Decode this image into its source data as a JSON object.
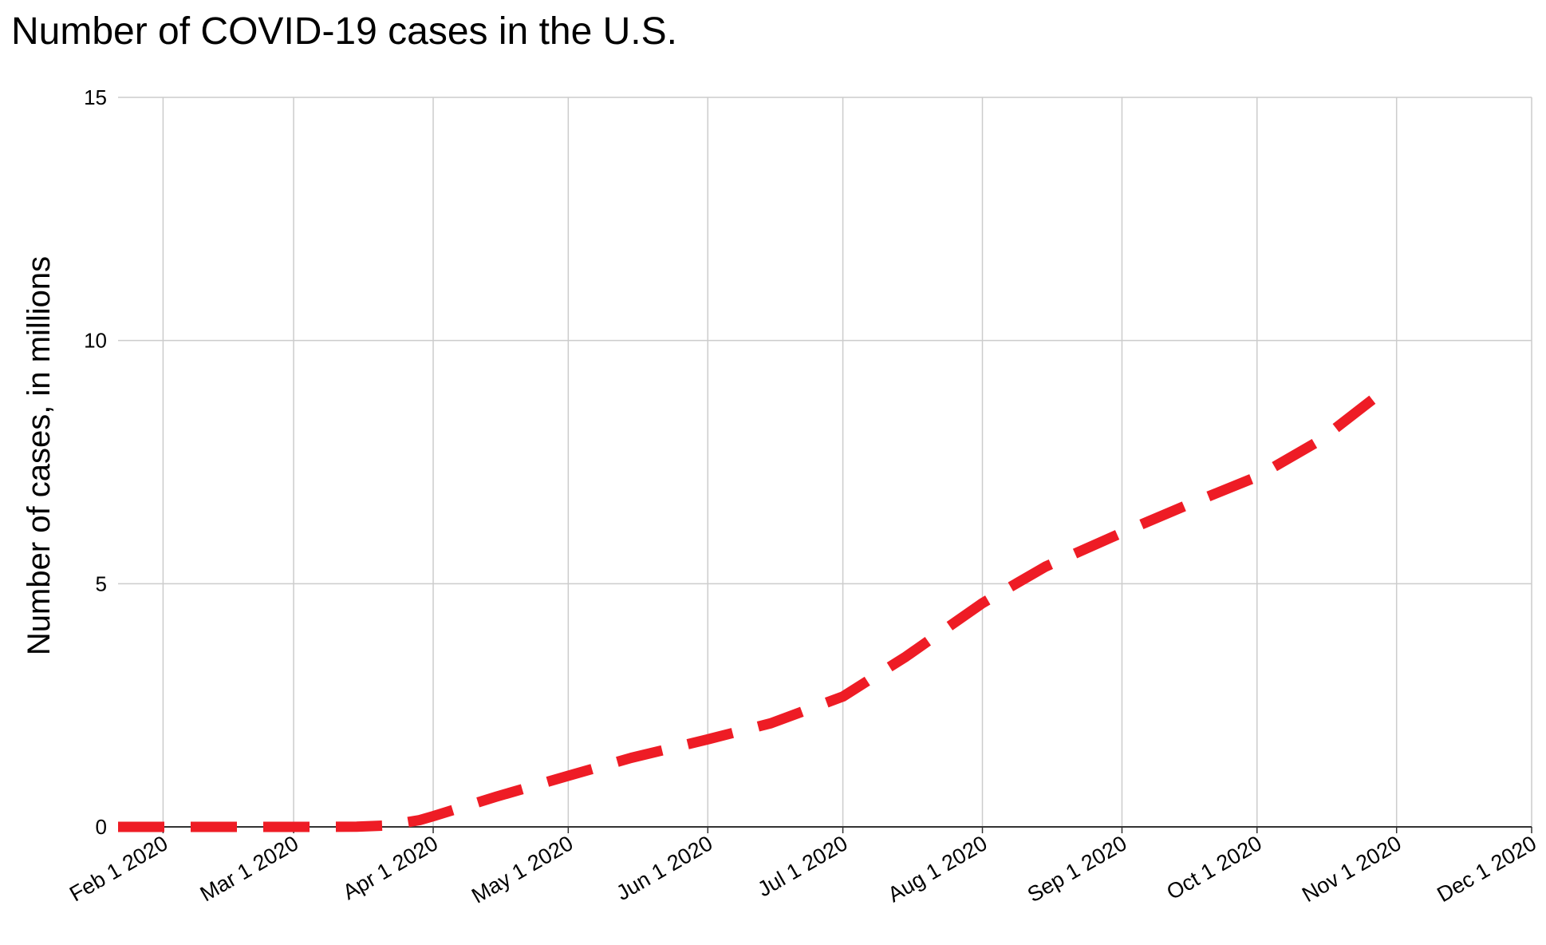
{
  "chart_data": {
    "type": "line",
    "title": "Number of COVID-19 cases in the U.S.",
    "xlabel": "",
    "ylabel": "Number of cases, in millions",
    "x_tick_labels": [
      "Feb 1 2020",
      "Mar 1 2020",
      "Apr 1 2020",
      "May 1 2020",
      "Jun 1 2020",
      "Jul 1 2020",
      "Aug 1 2020",
      "Sep 1 2020",
      "Oct 1 2020",
      "Nov 1 2020",
      "Dec 1 2020"
    ],
    "xlim": [
      "2020-01-22",
      "2020-12-01"
    ],
    "y_ticks": [
      0,
      5,
      10,
      15
    ],
    "ylim": [
      0,
      15
    ],
    "grid": true,
    "legend": "none",
    "line_style": "dashed",
    "color": "#ee1c25",
    "series": [
      {
        "x": [
          "2020-01-22",
          "2020-02-01",
          "2020-02-15",
          "2020-03-01",
          "2020-03-15",
          "2020-03-22",
          "2020-03-29",
          "2020-04-01",
          "2020-04-15",
          "2020-05-01",
          "2020-05-15",
          "2020-06-01",
          "2020-06-15",
          "2020-07-01",
          "2020-07-15",
          "2020-08-01",
          "2020-08-15",
          "2020-09-01",
          "2020-09-15",
          "2020-10-01",
          "2020-10-15",
          "2020-10-31"
        ],
        "y": [
          0.0,
          0.0,
          0.0,
          0.0,
          0.003,
          0.03,
          0.14,
          0.22,
          0.62,
          1.05,
          1.42,
          1.8,
          2.13,
          2.68,
          3.5,
          4.6,
          5.35,
          6.05,
          6.6,
          7.2,
          7.95,
          9.1
        ]
      }
    ]
  }
}
